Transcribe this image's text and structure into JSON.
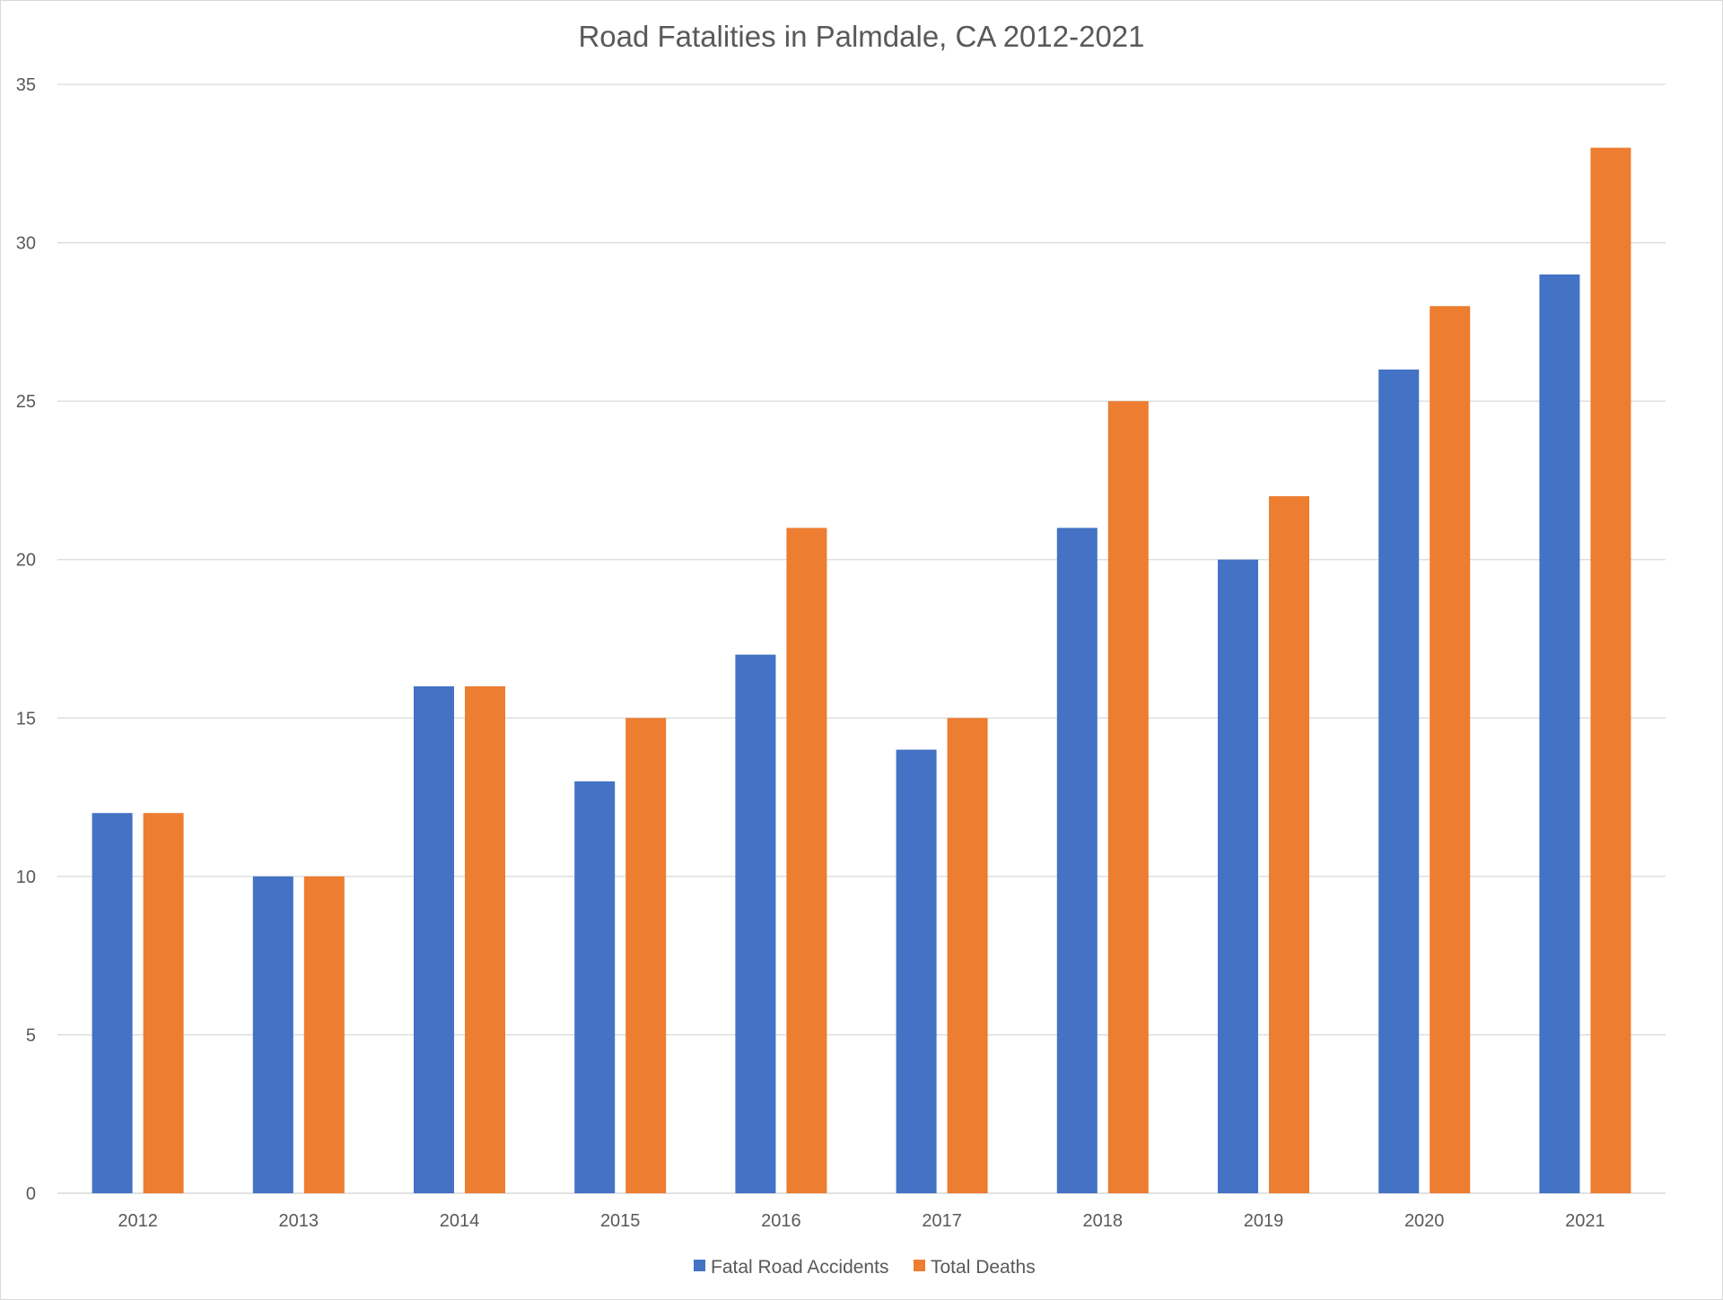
{
  "chart_data": {
    "type": "bar",
    "title": "Road Fatalities in Palmdale, CA 2012-2021",
    "xlabel": "",
    "ylabel": "",
    "categories": [
      "2012",
      "2013",
      "2014",
      "2015",
      "2016",
      "2017",
      "2018",
      "2019",
      "2020",
      "2021"
    ],
    "series": [
      {
        "name": "Fatal Road Accidents",
        "color": "#4472C4",
        "values": [
          12,
          10,
          16,
          13,
          17,
          14,
          21,
          20,
          26,
          29
        ]
      },
      {
        "name": "Total Deaths",
        "color": "#ED7D31",
        "values": [
          12,
          10,
          16,
          15,
          21,
          15,
          25,
          22,
          28,
          33
        ]
      }
    ],
    "ylim": [
      0,
      35
    ],
    "yticks": [
      0,
      5,
      10,
      15,
      20,
      25,
      30,
      35
    ],
    "grid": true,
    "legend_position": "bottom"
  }
}
